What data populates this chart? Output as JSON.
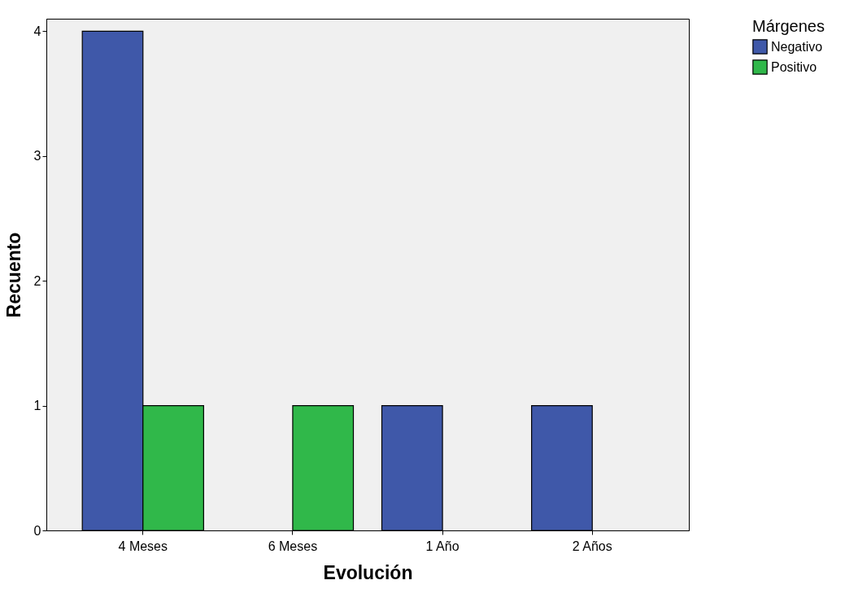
{
  "chart_data": {
    "type": "bar",
    "xlabel": "Evolución",
    "ylabel": "Recuento",
    "legend_title": "Márgenes",
    "legend": "top right",
    "grid": false,
    "categories": [
      "4 Meses",
      "6 Meses",
      "1 Año",
      "2 Años"
    ],
    "ylim": [
      0,
      4.1
    ],
    "yticks": [
      0,
      1,
      2,
      3,
      4
    ],
    "series": [
      {
        "name": "Negativo",
        "color": "#3f58a9",
        "values": [
          4,
          0,
          1,
          1
        ]
      },
      {
        "name": "Positivo",
        "color": "#30b84a",
        "values": [
          1,
          1,
          0,
          0
        ]
      }
    ]
  }
}
